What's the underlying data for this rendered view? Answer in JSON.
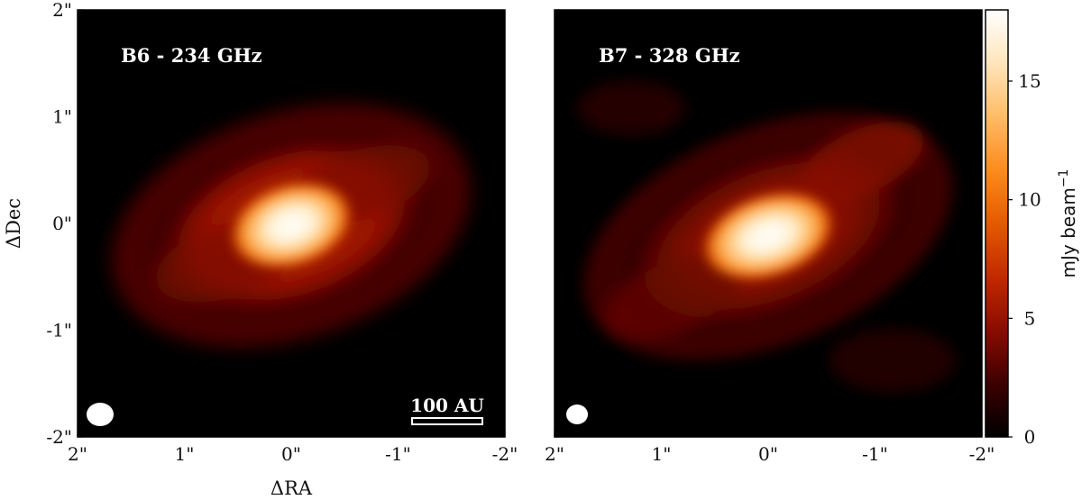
{
  "figure": {
    "left_panel": {
      "label": "B6 - 234 GHz"
    },
    "right_panel": {
      "label": "B7 - 328 GHz"
    },
    "x_axis": {
      "title": "ΔRA",
      "ticks": [
        {
          "value": 2,
          "label": "2\""
        },
        {
          "value": 1,
          "label": "1\""
        },
        {
          "value": 0,
          "label": "0\""
        },
        {
          "value": -1,
          "label": "-1\""
        },
        {
          "value": -2,
          "label": "-2\""
        }
      ]
    },
    "y_axis": {
      "title": "ΔDec",
      "ticks": [
        {
          "value": 2,
          "label": "2\""
        },
        {
          "value": 1,
          "label": "1\""
        },
        {
          "value": 0,
          "label": "0\""
        },
        {
          "value": -1,
          "label": "-1\""
        },
        {
          "value": -2,
          "label": "-2\""
        }
      ]
    },
    "scale_bar": {
      "label": "100 AU"
    },
    "colorbar": {
      "label_main": "mJy beam",
      "label_sup": "−1",
      "min": 0,
      "max": 18,
      "ticks": [
        {
          "value": 0,
          "label": "0"
        },
        {
          "value": 5,
          "label": "5"
        },
        {
          "value": 10,
          "label": "10"
        },
        {
          "value": 15,
          "label": "15"
        }
      ],
      "colors": [
        "#000000",
        "#3a0000",
        "#8a0c00",
        "#c02800",
        "#e45a00",
        "#fb8a1a",
        "#ffbb66",
        "#ffe3b8",
        "#ffffff"
      ]
    }
  }
}
